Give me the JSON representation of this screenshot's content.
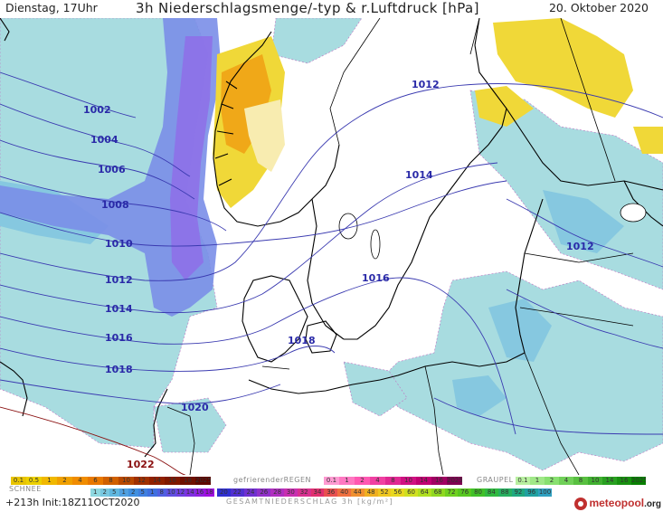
{
  "header": {
    "left": "Dienstag, 17Uhr",
    "title": "3h Niederschlagsmenge/-typ & r.Luftdruck [hPa]",
    "date": "20. Oktober 2020"
  },
  "isobars": [
    {
      "label": "1002",
      "color": "#3a3ab0"
    },
    {
      "label": "1004",
      "color": "#3a3ab0"
    },
    {
      "label": "1006",
      "color": "#3a3ab0"
    },
    {
      "label": "1008",
      "color": "#3a3ab0"
    },
    {
      "label": "1010",
      "color": "#3a3ab0"
    },
    {
      "label": "1012",
      "color": "#3a3ab0"
    },
    {
      "label": "1014",
      "color": "#3a3ab0"
    },
    {
      "label": "1016",
      "color": "#3a3ab0"
    },
    {
      "label": "1018",
      "color": "#3a3ab0"
    },
    {
      "label": "1020",
      "color": "#3a3ab0"
    },
    {
      "label": "1022",
      "color": "#8a1010"
    },
    {
      "label": "1012",
      "color": "#3a3ab0"
    },
    {
      "label": "1014",
      "color": "#3a3ab0"
    },
    {
      "label": "1016",
      "color": "#3a3ab0"
    },
    {
      "label": "1018",
      "color": "#3a3ab0"
    },
    {
      "label": "1012",
      "color": "#3a3ab0"
    }
  ],
  "legend": {
    "rain_label": "",
    "snow_label": "SCHNEE",
    "freezing_rain_label": "gefrierenderREGEN",
    "graupel_label": "GRAUPEL",
    "total_label": "GESAMTNIEDERSCHLAG 3h [kg/m²]",
    "rain_values": [
      "0.1",
      "0.5",
      "1",
      "2",
      "4",
      "6",
      "8",
      "10",
      "12",
      "14",
      "16",
      "18",
      "2025+"
    ],
    "snow_values": [
      "1",
      "2",
      "5",
      "1",
      "2",
      "5",
      "1",
      "8",
      "10",
      "12",
      "14",
      "16",
      "18"
    ],
    "freezing_values": [
      "0.1",
      "1",
      "2",
      "4",
      "8",
      "10",
      "14",
      "16",
      "2025+"
    ],
    "graupel_values": [
      "0.1",
      "1",
      "2",
      "4",
      "8",
      "10",
      "14",
      "16",
      "2025+"
    ],
    "total_values": [
      "20",
      "22",
      "24",
      "26",
      "28",
      "30",
      "32",
      "34",
      "36",
      "40",
      "44",
      "48",
      "52",
      "56",
      "60",
      "64",
      "68",
      "72",
      "76",
      "80",
      "84",
      "88",
      "92",
      "96",
      "100"
    ],
    "rain_colors": [
      "#e8c400",
      "#ecd000",
      "#f0b800",
      "#f0a000",
      "#f08c00",
      "#e87800",
      "#d06000",
      "#b84800",
      "#a03000",
      "#902000",
      "#801800",
      "#701000",
      "#600800"
    ],
    "snow_colors": [
      "#8ed8e0",
      "#78c8e0",
      "#60b8e0",
      "#50a0e0",
      "#4090e0",
      "#4080e0",
      "#4070e0",
      "#5060e0",
      "#6050e0",
      "#7040e0",
      "#8030e0",
      "#9020e0",
      "#a010e0"
    ],
    "freezing_colors": [
      "#ff9ad2",
      "#ff78c2",
      "#ff58b2",
      "#f040a2",
      "#e02892",
      "#d01082",
      "#c00072",
      "#a00062",
      "#800052"
    ],
    "graupel_colors": [
      "#b8f0a0",
      "#a0e888",
      "#88e070",
      "#70d058",
      "#58c040",
      "#40b030",
      "#28a020",
      "#189010",
      "#088000"
    ],
    "total_colors": [
      "#3030d0",
      "#5030d0",
      "#7030d0",
      "#9030c8",
      "#b030c0",
      "#c830b0",
      "#d83090",
      "#e03070",
      "#e85050",
      "#f07040",
      "#f09030",
      "#f0b020",
      "#f0c820",
      "#e8d820",
      "#d0e020",
      "#b0e020",
      "#90d820",
      "#70d020",
      "#58c820",
      "#40c028",
      "#30b840",
      "#28b060",
      "#20a880",
      "#20a0a0",
      "#30a0c0"
    ]
  },
  "footer": {
    "left": "+213h Init:18Z11OCT2020",
    "brand": "meteopool",
    "brand_suffix": ".org"
  },
  "colors": {
    "sea_precip_light": "#a8dce0",
    "sea_precip_mid": "#86c8e0",
    "snow_band": "#7a8ee8",
    "snow_core": "#8e6ee8",
    "rain_yellow": "#f0d838",
    "rain_orange": "#f0a818",
    "isobar": "#3a3ab0",
    "isobar_warm": "#8a1010",
    "coast": "#000000"
  }
}
